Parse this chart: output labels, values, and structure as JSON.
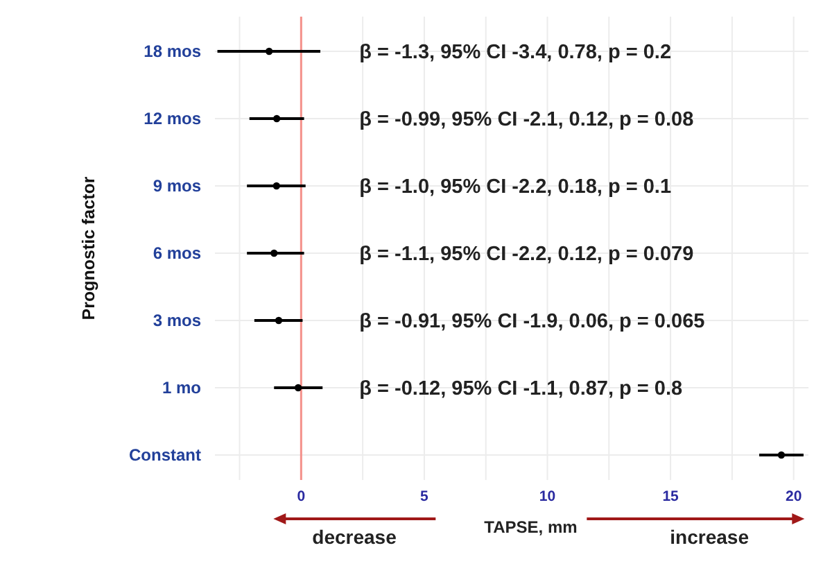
{
  "chart_data": {
    "type": "scatter",
    "orientation": "horizontal",
    "ylabel": "Prognostic factor",
    "xlabel": "TAPSE, mm",
    "categories": [
      "18 mos",
      "12 mos",
      "9 mos",
      "6 mos",
      "3 mos",
      "1 mo",
      "Constant"
    ],
    "values": [
      -1.3,
      -0.99,
      -1.0,
      -1.1,
      -0.91,
      -0.12,
      19.5
    ],
    "errors": [
      [
        -3.4,
        0.78
      ],
      [
        -2.1,
        0.12
      ],
      [
        -2.2,
        0.18
      ],
      [
        -2.2,
        0.12
      ],
      [
        -1.9,
        0.06
      ],
      [
        -1.1,
        0.87
      ],
      [
        18.6,
        20.4
      ]
    ],
    "color": "#000000",
    "marker": "circle",
    "xlim": [
      -3.5,
      20.6
    ],
    "xticks": [
      {
        "value": -2.5,
        "label": null
      },
      0,
      {
        "value": 2.5,
        "label": null
      },
      5,
      {
        "value": 7.5,
        "label": null
      },
      10,
      {
        "value": 12.5,
        "label": null
      },
      15,
      {
        "value": 17.5,
        "label": null
      },
      20
    ],
    "ref_lines": [
      {
        "axis": "x",
        "value": 0,
        "label": null,
        "color": "#f4908a"
      }
    ],
    "grid": true,
    "annotations": [
      "β = -1.3, 95% CI -3.4, 0.78, p = 0.2",
      "β = -0.99, 95% CI -2.1, 0.12, p = 0.08",
      "β = -1.0, 95% CI -2.2, 0.18, p = 0.1",
      "β = -1.1, 95% CI -2.2, 0.12, p = 0.079",
      "β = -0.91, 95% CI -1.9, 0.06, p = 0.065",
      "β = -0.12, 95% CI -1.1, 0.87, p = 0.8",
      "decrease",
      "increase"
    ]
  }
}
